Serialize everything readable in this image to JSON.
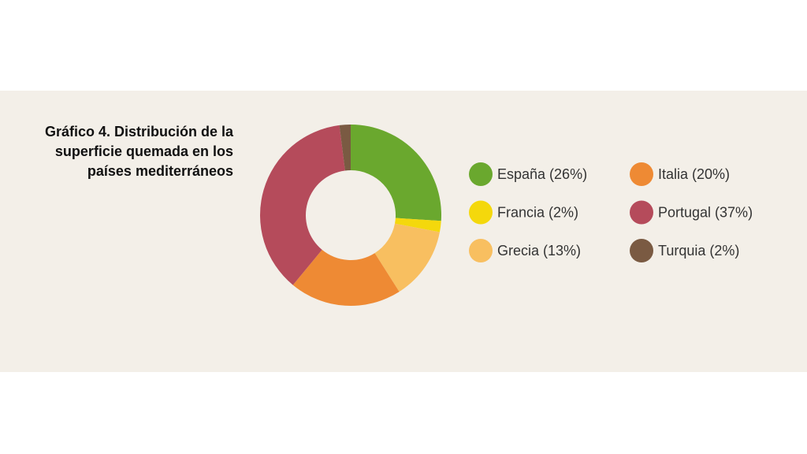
{
  "chart_data": {
    "type": "donut",
    "title": "Gráfico 4. Distribución de la superficie quemada en los países mediterráneos",
    "categories": [
      "España (26%)",
      "Francia (2%)",
      "Grecia (13%)",
      "Italia (20%)",
      "Portugal (37%)",
      "Turquia (2%)"
    ],
    "values": [
      26,
      2,
      13,
      20,
      37,
      2
    ],
    "colors": [
      "#6aa82e",
      "#f4d80c",
      "#f8bf60",
      "#ee8a34",
      "#b54b5b",
      "#7a5a42"
    ],
    "legend": "right"
  }
}
